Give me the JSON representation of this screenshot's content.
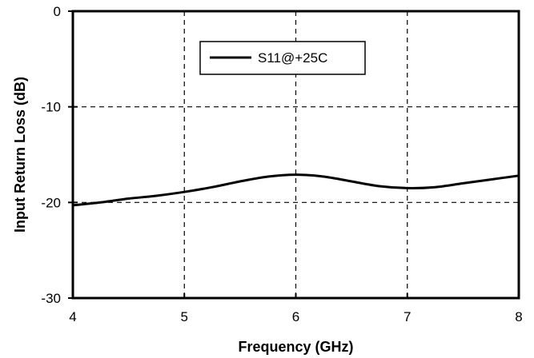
{
  "chart_data": {
    "type": "line",
    "xlabel": "Frequency (GHz)",
    "ylabel": "Input Return Loss (dB)",
    "xlim": [
      4,
      8
    ],
    "ylim": [
      -30,
      0
    ],
    "x_ticks": [
      4,
      5,
      6,
      7,
      8
    ],
    "y_ticks": [
      0,
      -10,
      -20,
      -30
    ],
    "x_tick_labels": [
      "4",
      "5",
      "6",
      "7",
      "8"
    ],
    "y_tick_labels": [
      "0",
      "-10",
      "-20",
      "-30"
    ],
    "grid": "dashed",
    "legend_position": "top-left",
    "series": [
      {
        "name": "S11@+25C",
        "color": "#000000",
        "x": [
          4.0,
          4.25,
          4.5,
          4.75,
          5.0,
          5.25,
          5.5,
          5.75,
          6.0,
          6.25,
          6.5,
          6.75,
          7.0,
          7.25,
          7.5,
          7.75,
          8.0
        ],
        "y": [
          -20.3,
          -20.0,
          -19.6,
          -19.3,
          -18.9,
          -18.4,
          -17.8,
          -17.3,
          -17.1,
          -17.3,
          -17.8,
          -18.3,
          -18.5,
          -18.4,
          -18.0,
          -17.6,
          -17.2
        ]
      }
    ]
  }
}
